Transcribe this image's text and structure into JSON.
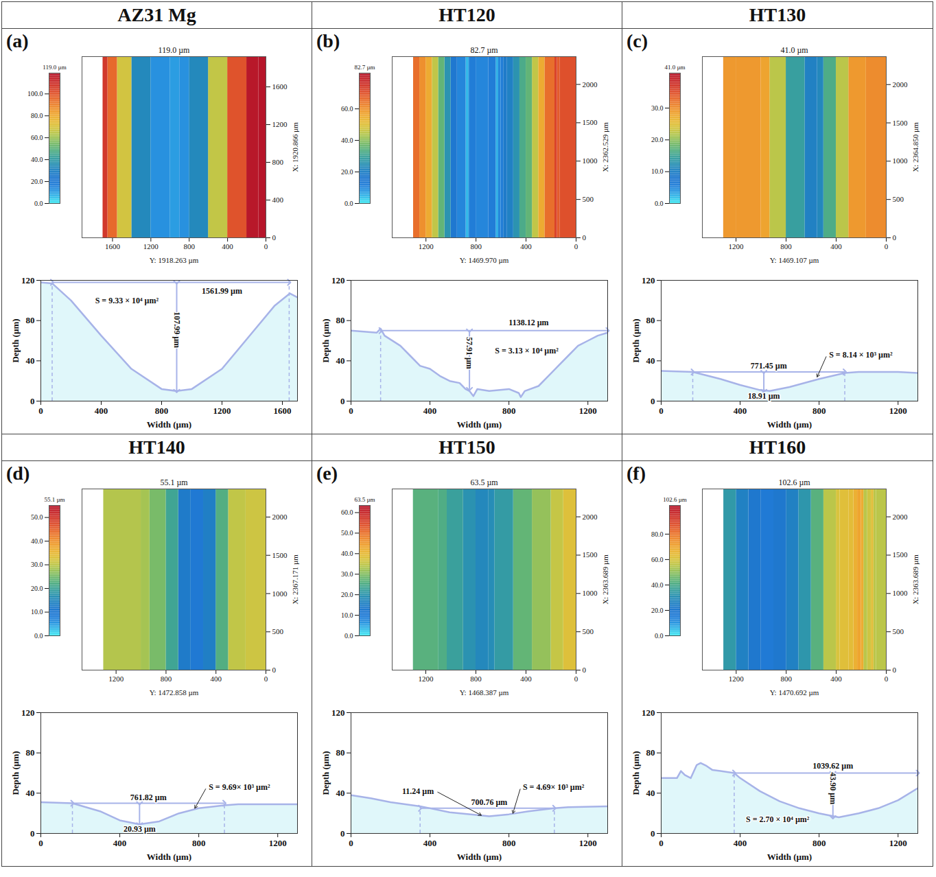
{
  "chart_data": [
    {
      "title": "AZ31 Mg",
      "panel": "(a)",
      "surface": {
        "type": "heatmap",
        "peak_label": "119.0 µm",
        "xlabel": "Y: 1918.263 µm",
        "xlim": [
          0,
          1918.263
        ],
        "xticks": [
          0,
          400,
          800,
          1200,
          1600
        ],
        "ylabel": "X: 1920.866 µm",
        "ylim": [
          0,
          1920.866
        ],
        "yticks": [
          0,
          400,
          800,
          1200,
          1600
        ],
        "colorbar": {
          "lim": [
            0,
            119.0
          ],
          "ticks": [
            {
              "value": 0,
              "label": "0.0"
            },
            {
              "value": 20,
              "label": "20.0"
            },
            {
              "value": 40,
              "label": "40.0"
            },
            {
              "value": 60,
              "label": "60.0"
            },
            {
              "value": 80,
              "label": "80.0"
            },
            {
              "value": 100,
              "label": "100.0"
            }
          ]
        }
      },
      "profile": {
        "type": "area",
        "xlabel": "Width (µm)",
        "ylabel": "Depth (µm)",
        "x": [
          0,
          75,
          200,
          400,
          600,
          800,
          900,
          1000,
          1200,
          1400,
          1550,
          1650,
          1700
        ],
        "values": [
          118,
          117,
          100,
          65,
          32,
          12,
          10,
          12,
          32,
          68,
          95,
          107,
          103
        ],
        "xlim": [
          0,
          1700
        ],
        "xticks": [
          0,
          400,
          800,
          1200,
          1600
        ],
        "ylim": [
          0,
          120
        ],
        "yticks": [
          0,
          40,
          80,
          120
        ],
        "edges": [
          75,
          1645
        ],
        "width_span": {
          "x": [
            75,
            1645
          ],
          "y": 118,
          "label": "1561.99 µm",
          "label_at": [
            1200,
            109
          ]
        },
        "depth_span": {
          "x": 900,
          "y": [
            118,
            10
          ],
          "label": "107.99 µm",
          "label_at": [
            900,
            64
          ]
        },
        "area_label": {
          "text": "S = 9.33 × 10⁴ µm²",
          "at": [
            570,
            100
          ]
        }
      }
    },
    {
      "title": "HT120",
      "panel": "(b)",
      "surface": {
        "type": "heatmap",
        "peak_label": "82.7 µm",
        "xlabel": "Y: 1469.970 µm",
        "xlim": [
          0,
          1469.97
        ],
        "xticks": [
          0,
          400,
          800,
          1200
        ],
        "ylabel": "X: 2362.529 µm",
        "ylim": [
          0,
          2362.529
        ],
        "yticks": [
          0,
          500,
          1000,
          1500,
          2000
        ],
        "colorbar": {
          "lim": [
            0,
            82.7
          ],
          "ticks": [
            {
              "value": 0,
              "label": "0.0"
            },
            {
              "value": 20,
              "label": "20.0"
            },
            {
              "value": 40,
              "label": "40.0"
            },
            {
              "value": 60,
              "label": "60.0"
            }
          ]
        }
      },
      "profile": {
        "type": "area",
        "xlabel": "Width (µm)",
        "ylabel": "Depth (µm)",
        "x": [
          0,
          130,
          150,
          170,
          250,
          300,
          350,
          400,
          450,
          500,
          550,
          580,
          600,
          620,
          640,
          700,
          800,
          850,
          860,
          880,
          950,
          1000,
          1050,
          1100,
          1150,
          1200,
          1250,
          1300
        ],
        "values": [
          70,
          68,
          72,
          65,
          55,
          45,
          35,
          32,
          25,
          20,
          18,
          12,
          10,
          5,
          12,
          10,
          12,
          8,
          4,
          10,
          15,
          25,
          35,
          45,
          55,
          60,
          65,
          68
        ],
        "xlim": [
          0,
          1300
        ],
        "xticks": [
          0,
          400,
          800,
          1200
        ],
        "ylim": [
          0,
          120
        ],
        "yticks": [
          0,
          40,
          80,
          120
        ],
        "edges": [
          150
        ],
        "width_span": {
          "x": [
            150,
            1300
          ],
          "y": 70,
          "label": "1138.12 µm",
          "label_at": [
            900,
            78
          ]
        },
        "depth_span": {
          "x": 600,
          "y": [
            70,
            12
          ],
          "label": "57.91 µm",
          "label_at": [
            600,
            41
          ]
        },
        "area_label": {
          "text": "S = 3.13 × 10⁴ µm²",
          "at": [
            890,
            50
          ]
        }
      }
    },
    {
      "title": "HT130",
      "panel": "(c)",
      "surface": {
        "type": "heatmap",
        "peak_label": "41.0 µm",
        "xlabel": "Y: 1469.107 µm",
        "xlim": [
          0,
          1469.107
        ],
        "xticks": [
          0,
          400,
          800,
          1200
        ],
        "ylabel": "X: 2364.850 µm",
        "ylim": [
          0,
          2364.85
        ],
        "yticks": [
          0,
          500,
          1000,
          1500,
          2000
        ],
        "colorbar": {
          "lim": [
            0,
            41.0
          ],
          "ticks": [
            {
              "value": 0,
              "label": "0.0"
            },
            {
              "value": 10,
              "label": "10.0"
            },
            {
              "value": 20,
              "label": "20.0"
            },
            {
              "value": 30,
              "label": "30.0"
            }
          ]
        }
      },
      "profile": {
        "type": "area",
        "xlabel": "Width (µm)",
        "ylabel": "Depth (µm)",
        "x": [
          0,
          160,
          300,
          400,
          500,
          550,
          650,
          800,
          930,
          1000,
          1200,
          1300
        ],
        "values": [
          30,
          29,
          22,
          16,
          11,
          10,
          14,
          22,
          28,
          29,
          29,
          28
        ],
        "xlim": [
          0,
          1300
        ],
        "xticks": [
          0,
          400,
          800,
          1200
        ],
        "ylim": [
          0,
          120
        ],
        "yticks": [
          0,
          40,
          80,
          120
        ],
        "edges": [
          160,
          930
        ],
        "width_span": {
          "x": [
            160,
            930
          ],
          "y": 29,
          "label": "771.45 µm",
          "label_at": [
            545,
            35
          ]
        },
        "depth_span": {
          "x": 520,
          "y": [
            29,
            10
          ],
          "label": "18.91 µm",
          "label_at": [
            520,
            5
          ]
        },
        "area_label": {
          "text": "S = 8.14 × 10³ µm²",
          "at": [
            840,
            46
          ],
          "points_to": [
            790,
            24
          ]
        }
      }
    },
    {
      "title": "HT140",
      "panel": "(d)",
      "surface": {
        "type": "heatmap",
        "peak_label": "55.1 µm",
        "xlabel": "Y: 1472.858 µm",
        "xlim": [
          0,
          1472.858
        ],
        "xticks": [
          0,
          400,
          800,
          1200
        ],
        "ylabel": "X: 2367.171 µm",
        "ylim": [
          0,
          2367.171
        ],
        "yticks": [
          0,
          500,
          1000,
          1500,
          2000
        ],
        "colorbar": {
          "lim": [
            0,
            55.1
          ],
          "ticks": [
            {
              "value": 0,
              "label": "0.0"
            },
            {
              "value": 10,
              "label": "10.0"
            },
            {
              "value": 20,
              "label": "20.0"
            },
            {
              "value": 30,
              "label": "30.0"
            },
            {
              "value": 40,
              "label": "40.0"
            },
            {
              "value": 50,
              "label": "50.0"
            }
          ]
        }
      },
      "profile": {
        "type": "area",
        "xlabel": "Width (µm)",
        "ylabel": "Depth (µm)",
        "x": [
          0,
          160,
          300,
          400,
          500,
          600,
          700,
          800,
          930,
          1000,
          1300
        ],
        "values": [
          31,
          30,
          22,
          13,
          9,
          12,
          20,
          25,
          28,
          29,
          29
        ],
        "xlim": [
          0,
          1300
        ],
        "xticks": [
          0,
          400,
          800,
          1200
        ],
        "ylim": [
          0,
          120
        ],
        "yticks": [
          0,
          40,
          80,
          120
        ],
        "edges": [
          160,
          930
        ],
        "width_span": {
          "x": [
            160,
            930
          ],
          "y": 30,
          "label": "761.82 µm",
          "label_at": [
            545,
            36
          ]
        },
        "depth_span": {
          "x": 500,
          "y": [
            30,
            9
          ],
          "label": "20.93 µm",
          "label_at": [
            500,
            4
          ]
        },
        "area_label": {
          "text": "S = 9.69× 10³ µm²",
          "at": [
            840,
            46
          ],
          "points_to": [
            780,
            25
          ]
        }
      }
    },
    {
      "title": "HT150",
      "panel": "(e)",
      "surface": {
        "type": "heatmap",
        "peak_label": "63.5 µm",
        "xlabel": "Y: 1468.387 µm",
        "xlim": [
          0,
          1468.387
        ],
        "xticks": [
          0,
          400,
          800,
          1200
        ],
        "ylabel": "X: 2363.689 µm",
        "ylim": [
          0,
          2363.689
        ],
        "yticks": [
          0,
          500,
          1000,
          1500,
          2000
        ],
        "colorbar": {
          "lim": [
            0,
            63.5
          ],
          "ticks": [
            {
              "value": 0,
              "label": "0.0"
            },
            {
              "value": 10,
              "label": "10.0"
            },
            {
              "value": 20,
              "label": "20.0"
            },
            {
              "value": 30,
              "label": "30.0"
            },
            {
              "value": 40,
              "label": "40.0"
            },
            {
              "value": 50,
              "label": "50.0"
            },
            {
              "value": 60,
              "label": "60.0"
            }
          ]
        }
      },
      "profile": {
        "type": "area",
        "xlabel": "Width (µm)",
        "ylabel": "Depth (µm)",
        "x": [
          0,
          100,
          200,
          350,
          500,
          650,
          700,
          800,
          900,
          1030,
          1100,
          1300
        ],
        "values": [
          38,
          35,
          31,
          27,
          21,
          18,
          17,
          19,
          22,
          25,
          26,
          27
        ],
        "xlim": [
          0,
          1300
        ],
        "xticks": [
          0,
          400,
          800,
          1200
        ],
        "ylim": [
          0,
          120
        ],
        "yticks": [
          0,
          40,
          80,
          120
        ],
        "edges": [
          350,
          1030
        ],
        "width_span": {
          "x": [
            350,
            1030
          ],
          "y": 25,
          "label": "700.76 µm",
          "label_at": [
            700,
            31
          ]
        },
        "depth_span": {
          "label": "11.24 µm",
          "label_at": [
            430,
            42
          ],
          "points_to": [
            660,
            18
          ]
        },
        "area_label": {
          "text": "S = 4.69× 10³ µm²",
          "at": [
            860,
            46
          ],
          "points_to": [
            820,
            20
          ]
        }
      }
    },
    {
      "title": "HT160",
      "panel": "(f)",
      "surface": {
        "type": "heatmap",
        "peak_label": "102.6 µm",
        "xlabel": "Y: 1470.692 µm",
        "xlim": [
          0,
          1470.692
        ],
        "xticks": [
          0,
          400,
          800,
          1200
        ],
        "ylabel": "X: 2363.689 µm",
        "ylim": [
          0,
          2363.689
        ],
        "yticks": [
          0,
          500,
          1000,
          1500,
          2000
        ],
        "colorbar": {
          "lim": [
            0,
            102.6
          ],
          "ticks": [
            {
              "value": 0,
              "label": "0.0"
            },
            {
              "value": 20,
              "label": "20.0"
            },
            {
              "value": 40,
              "label": "40.0"
            },
            {
              "value": 60,
              "label": "60.0"
            },
            {
              "value": 80,
              "label": "80.0"
            }
          ]
        }
      },
      "profile": {
        "type": "area",
        "xlabel": "Width (µm)",
        "ylabel": "Depth (µm)",
        "x": [
          0,
          80,
          100,
          120,
          150,
          180,
          200,
          230,
          260,
          300,
          370,
          400,
          500,
          600,
          700,
          800,
          900,
          1000,
          1100,
          1200,
          1300
        ],
        "values": [
          55,
          55,
          62,
          58,
          55,
          68,
          70,
          67,
          63,
          62,
          60,
          55,
          42,
          32,
          25,
          20,
          16,
          20,
          25,
          33,
          45
        ],
        "xlim": [
          0,
          1300
        ],
        "xticks": [
          0,
          400,
          800,
          1200
        ],
        "ylim": [
          0,
          120
        ],
        "yticks": [
          0,
          40,
          80,
          120
        ],
        "edges": [
          370
        ],
        "width_span": {
          "x": [
            370,
            1300
          ],
          "y": 60,
          "label": "1039.62 µm",
          "label_at": [
            870,
            67
          ]
        },
        "depth_span": {
          "x": 870,
          "y": [
            60,
            16
          ],
          "label": "43.90 µm",
          "label_at": [
            870,
            38
          ]
        },
        "area_label": {
          "text": "S = 2.70 × 10⁴ µm²",
          "at": [
            590,
            14
          ]
        }
      }
    }
  ]
}
